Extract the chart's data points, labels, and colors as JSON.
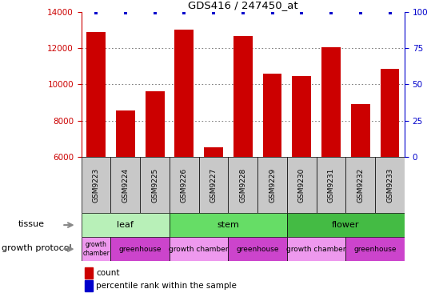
{
  "title": "GDS416 / 247450_at",
  "samples": [
    "GSM9223",
    "GSM9224",
    "GSM9225",
    "GSM9226",
    "GSM9227",
    "GSM9228",
    "GSM9229",
    "GSM9230",
    "GSM9231",
    "GSM9232",
    "GSM9233"
  ],
  "counts": [
    12900,
    8550,
    9600,
    13000,
    6550,
    12650,
    10600,
    10450,
    12050,
    8900,
    10850
  ],
  "percentiles": [
    99,
    99,
    99,
    99,
    99,
    99,
    99,
    99,
    99,
    99,
    99
  ],
  "ylim_left": [
    6000,
    14000
  ],
  "ylim_right": [
    0,
    100
  ],
  "yticks_left": [
    6000,
    8000,
    10000,
    12000,
    14000
  ],
  "yticks_right": [
    0,
    25,
    50,
    75,
    100
  ],
  "bar_color": "#cc0000",
  "dot_color": "#0000cc",
  "tissue_groups": [
    {
      "label": "leaf",
      "start": 0,
      "end": 3,
      "color": "#b8f0b8"
    },
    {
      "label": "stem",
      "start": 3,
      "end": 7,
      "color": "#66dd66"
    },
    {
      "label": "flower",
      "start": 7,
      "end": 11,
      "color": "#44bb44"
    }
  ],
  "growth_protocol_groups": [
    {
      "label": "growth\nchamber",
      "start": 0,
      "end": 1,
      "color": "#ee99ee"
    },
    {
      "label": "greenhouse",
      "start": 1,
      "end": 3,
      "color": "#cc44cc"
    },
    {
      "label": "growth chamber",
      "start": 3,
      "end": 5,
      "color": "#ee99ee"
    },
    {
      "label": "greenhouse",
      "start": 5,
      "end": 7,
      "color": "#cc44cc"
    },
    {
      "label": "growth chamber",
      "start": 7,
      "end": 9,
      "color": "#ee99ee"
    },
    {
      "label": "greenhouse",
      "start": 9,
      "end": 11,
      "color": "#cc44cc"
    }
  ],
  "tissue_label": "tissue",
  "growth_label": "growth protocol",
  "legend_count_label": "count",
  "legend_pct_label": "percentile rank within the sample",
  "grid_color": "#666666",
  "bg_color": "#ffffff",
  "left_axis_color": "#cc0000",
  "right_axis_color": "#0000cc",
  "sample_bg_color": "#c8c8c8"
}
